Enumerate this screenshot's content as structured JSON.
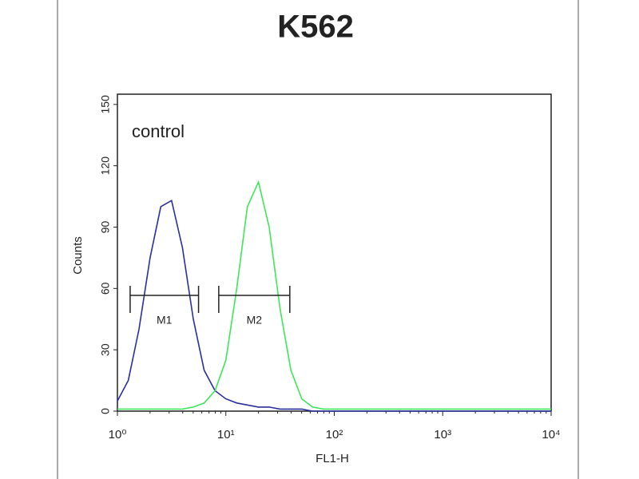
{
  "chart_data": {
    "type": "line",
    "title": "K562",
    "annotation": "control",
    "x_label": "FL1-H",
    "y_label": "Counts",
    "xscale": "log",
    "x": [
      1,
      1.26,
      1.58,
      2.0,
      2.51,
      3.16,
      3.98,
      5.01,
      6.31,
      7.94,
      10,
      12.6,
      15.8,
      20,
      25.1,
      31.6,
      39.8,
      50.1,
      63.1,
      79.4,
      100,
      316,
      1000,
      3162,
      10000
    ],
    "series": [
      {
        "color": "#2b2f9e",
        "values": [
          5,
          15,
          40,
          75,
          100,
          103,
          80,
          45,
          20,
          10,
          6,
          4,
          3,
          2,
          2,
          1,
          1,
          1,
          0,
          0,
          0,
          0,
          0,
          0,
          0
        ]
      },
      {
        "color": "#3ee65a",
        "values": [
          1,
          1,
          1,
          1,
          1,
          1,
          1,
          2,
          4,
          10,
          25,
          60,
          100,
          112,
          90,
          50,
          20,
          6,
          2,
          1,
          1,
          1,
          1,
          1,
          1
        ]
      }
    ],
    "markers": [
      {
        "label": "M1",
        "range": [
          1.31,
          5.6
        ]
      },
      {
        "label": "M2",
        "range": [
          8.6,
          38.9
        ]
      }
    ],
    "xlim": [
      1,
      10000
    ],
    "xticks": [
      {
        "value": 1,
        "label": "10⁰"
      },
      {
        "value": 10,
        "label": "10¹"
      },
      {
        "value": 100,
        "label": "10²"
      },
      {
        "value": 1000,
        "label": "10³"
      },
      {
        "value": 10000,
        "label": "10⁴"
      }
    ],
    "ylim": [
      0,
      155
    ],
    "yticks": [
      0,
      30,
      60,
      90,
      120,
      150
    ]
  }
}
